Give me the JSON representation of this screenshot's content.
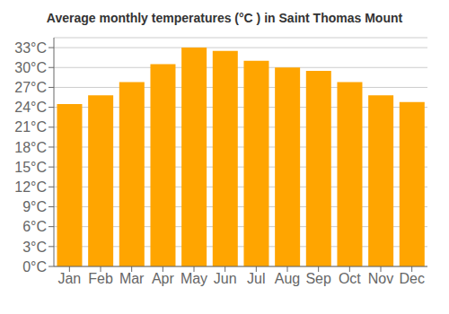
{
  "chart_data": {
    "type": "bar",
    "title": "Average monthly temperatures (°C ) in Saint Thomas Mount",
    "categories": [
      "Jan",
      "Feb",
      "Mar",
      "Apr",
      "May",
      "Jun",
      "Jul",
      "Aug",
      "Sep",
      "Oct",
      "Nov",
      "Dec"
    ],
    "values": [
      24.5,
      25.8,
      27.8,
      30.5,
      33.0,
      32.5,
      31.0,
      30.0,
      29.5,
      27.8,
      25.8,
      24.8
    ],
    "color": "#FFA500",
    "ylim": [
      0,
      34.5
    ],
    "yticks": [
      {
        "value": 0,
        "label": "0°C"
      },
      {
        "value": 3,
        "label": "3°C"
      },
      {
        "value": 6,
        "label": "6°C"
      },
      {
        "value": 9,
        "label": "9°C"
      },
      {
        "value": 12,
        "label": "12°C"
      },
      {
        "value": 15,
        "label": "15°C"
      },
      {
        "value": 18,
        "label": "18°C"
      },
      {
        "value": 21,
        "label": "21°C"
      },
      {
        "value": 24,
        "label": "24°C"
      },
      {
        "value": 27,
        "label": "27°C"
      },
      {
        "value": 30,
        "label": "30°C"
      },
      {
        "value": 33,
        "label": "33°C"
      }
    ],
    "grid": true
  }
}
